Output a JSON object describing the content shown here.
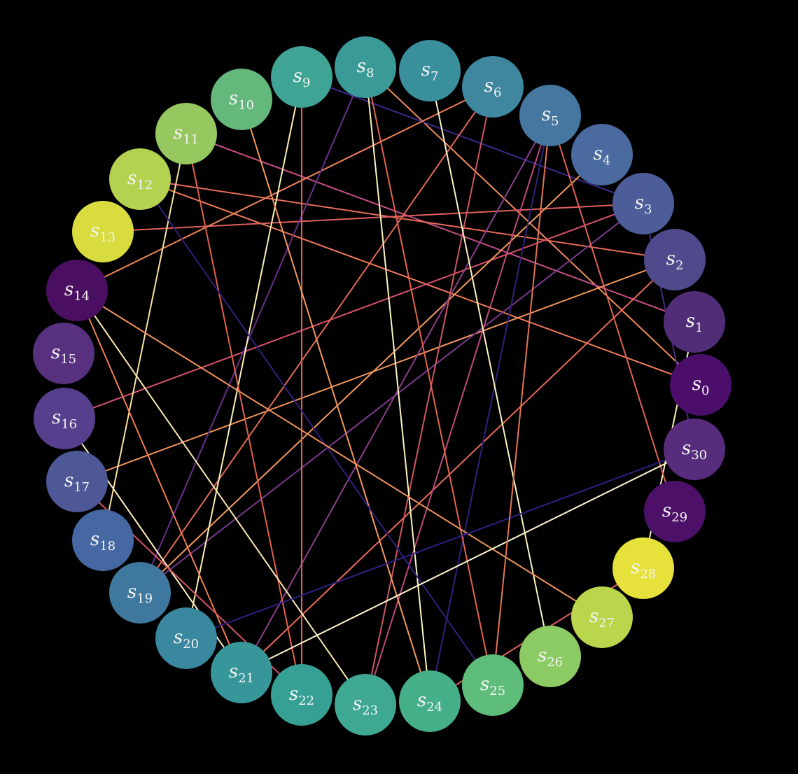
{
  "diagram": {
    "type": "circular-graph",
    "background": "#000000",
    "label_prefix": "s",
    "nodes": [
      {
        "id": "0",
        "color": "#4b0f6b"
      },
      {
        "id": "1",
        "color": "#512d77"
      },
      {
        "id": "2",
        "color": "#4e4a8c"
      },
      {
        "id": "3",
        "color": "#4c5d9a"
      },
      {
        "id": "4",
        "color": "#4a6aa0"
      },
      {
        "id": "5",
        "color": "#4577a1"
      },
      {
        "id": "6",
        "color": "#3f869f"
      },
      {
        "id": "7",
        "color": "#3a8f9d"
      },
      {
        "id": "8",
        "color": "#3a9a98"
      },
      {
        "id": "9",
        "color": "#3fa493"
      },
      {
        "id": "10",
        "color": "#64b87c"
      },
      {
        "id": "11",
        "color": "#97c85f"
      },
      {
        "id": "12",
        "color": "#b4d24f"
      },
      {
        "id": "13",
        "color": "#d9dc3f"
      },
      {
        "id": "14",
        "color": "#4a0f60"
      },
      {
        "id": "15",
        "color": "#57317f"
      },
      {
        "id": "16",
        "color": "#563f8c"
      },
      {
        "id": "17",
        "color": "#4e5896"
      },
      {
        "id": "18",
        "color": "#4668a2"
      },
      {
        "id": "19",
        "color": "#3f789f"
      },
      {
        "id": "20",
        "color": "#39889f"
      },
      {
        "id": "21",
        "color": "#37969a"
      },
      {
        "id": "22",
        "color": "#36a095"
      },
      {
        "id": "23",
        "color": "#3ea892"
      },
      {
        "id": "24",
        "color": "#45af88"
      },
      {
        "id": "25",
        "color": "#5ebd7a"
      },
      {
        "id": "26",
        "color": "#8ccb63"
      },
      {
        "id": "27",
        "color": "#b9d64d"
      },
      {
        "id": "28",
        "color": "#e6e13b"
      },
      {
        "id": "29",
        "color": "#4d1068"
      },
      {
        "id": "30",
        "color": "#572c7d"
      }
    ],
    "edges": [
      {
        "from": "0",
        "to": "8",
        "color": "#f08a5d"
      },
      {
        "from": "0",
        "to": "12",
        "color": "#f07a5c"
      },
      {
        "from": "1",
        "to": "11",
        "color": "#c94f8a"
      },
      {
        "from": "1",
        "to": "28",
        "color": "#fbf5bb"
      },
      {
        "from": "2",
        "to": "21",
        "color": "#e86b5a"
      },
      {
        "from": "2",
        "to": "17",
        "color": "#f0955c"
      },
      {
        "from": "2",
        "to": "12",
        "color": "#e96c5a"
      },
      {
        "from": "3",
        "to": "19",
        "color": "#7b3a8c"
      },
      {
        "from": "3",
        "to": "16",
        "color": "#d9526c"
      },
      {
        "from": "3",
        "to": "13",
        "color": "#e0605e"
      },
      {
        "from": "3",
        "to": "9",
        "color": "#3b2a8a"
      },
      {
        "from": "3",
        "to": "30",
        "color": "#4b2a7d"
      },
      {
        "from": "4",
        "to": "19",
        "color": "#f59b5f"
      },
      {
        "from": "5",
        "to": "23",
        "color": "#c04a7e"
      },
      {
        "from": "5",
        "to": "24",
        "color": "#31237a"
      },
      {
        "from": "5",
        "to": "29",
        "color": "#e06455"
      },
      {
        "from": "5",
        "to": "21",
        "color": "#8d3f8c"
      },
      {
        "from": "6",
        "to": "14",
        "color": "#f08558"
      },
      {
        "from": "6",
        "to": "19",
        "color": "#e36a58"
      },
      {
        "from": "6",
        "to": "23",
        "color": "#d05862"
      },
      {
        "from": "7",
        "to": "26",
        "color": "#fff4c2"
      },
      {
        "from": "8",
        "to": "24",
        "color": "#fff4c2"
      },
      {
        "from": "8",
        "to": "25",
        "color": "#e5644f"
      },
      {
        "from": "8",
        "to": "19",
        "color": "#6b3089"
      },
      {
        "from": "9",
        "to": "20",
        "color": "#fff1b8"
      },
      {
        "from": "9",
        "to": "22",
        "color": "#e55e58"
      },
      {
        "from": "10",
        "to": "24",
        "color": "#f79a5f"
      },
      {
        "from": "11",
        "to": "22",
        "color": "#e6604e"
      },
      {
        "from": "11",
        "to": "18",
        "color": "#fde0a4"
      },
      {
        "from": "12",
        "to": "25",
        "color": "#311f7a"
      },
      {
        "from": "14",
        "to": "27",
        "color": "#f1935a"
      },
      {
        "from": "14",
        "to": "23",
        "color": "#fbe9b0"
      },
      {
        "from": "14",
        "to": "21",
        "color": "#f07e55"
      },
      {
        "from": "16",
        "to": "21",
        "color": "#fff1c0"
      },
      {
        "from": "17",
        "to": "22",
        "color": "#d55565"
      },
      {
        "from": "20",
        "to": "30",
        "color": "#2e2080"
      },
      {
        "from": "21",
        "to": "30",
        "color": "#fff6d0"
      },
      {
        "from": "24",
        "to": "28",
        "color": "#e0605a"
      },
      {
        "from": "25",
        "to": "5",
        "color": "#e67556"
      }
    ]
  }
}
